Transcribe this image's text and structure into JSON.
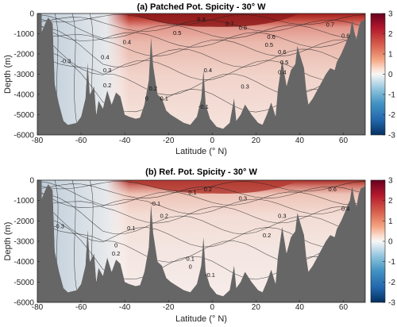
{
  "chart_data": [
    {
      "type": "heatmap",
      "title": "(a) Patched Pot. Spicity - 30° W",
      "xlabel": "Latitude (° N)",
      "ylabel": "Depth (m)",
      "xlim": [
        -80,
        70
      ],
      "ylim": [
        -6000,
        0
      ],
      "xticks": [
        "-80",
        "-60",
        "-40",
        "-20",
        "0",
        "20",
        "40",
        "60"
      ],
      "yticks": [
        "0",
        "-1000",
        "-2000",
        "-3000",
        "-4000",
        "-5000",
        "-6000"
      ],
      "colorbar": {
        "range": [
          -3,
          3
        ],
        "ticks": [
          "3",
          "2",
          "1",
          "0",
          "-1",
          "-2",
          "-3"
        ],
        "colormap": "blue-white-red"
      },
      "contour_labels": [
        {
          "text": "0.3",
          "lat": -5,
          "depth": -400
        },
        {
          "text": "0.7",
          "lat": 8,
          "depth": -600
        },
        {
          "text": "0.6",
          "lat": 14,
          "depth": -800
        },
        {
          "text": "0.5",
          "lat": -16,
          "depth": -1050
        },
        {
          "text": "0.4",
          "lat": -39,
          "depth": -1500
        },
        {
          "text": "0.5",
          "lat": 26,
          "depth": -1650
        },
        {
          "text": "0.6",
          "lat": 27,
          "depth": -1250
        },
        {
          "text": "0.7",
          "lat": 54,
          "depth": -650
        },
        {
          "text": "0.6",
          "lat": 61,
          "depth": -1200
        },
        {
          "text": "0.6",
          "lat": 32,
          "depth": -2000
        },
        {
          "text": "0.5",
          "lat": 33,
          "depth": -2500
        },
        {
          "text": "0.4",
          "lat": 32,
          "depth": -3000
        },
        {
          "text": "0.4",
          "lat": -2,
          "depth": -2900
        },
        {
          "text": "0.3",
          "lat": 15,
          "depth": -3700
        },
        {
          "text": "0.2",
          "lat": -27,
          "depth": -3800
        },
        {
          "text": "0.1",
          "lat": -22,
          "depth": -4300
        },
        {
          "text": "0",
          "lat": -30,
          "depth": -4300
        },
        {
          "text": "-0.1",
          "lat": -4,
          "depth": -4700
        },
        {
          "text": "-0.3",
          "lat": -67,
          "depth": -2450
        },
        {
          "text": "0.2",
          "lat": -48,
          "depth": -3650
        },
        {
          "text": "0.3",
          "lat": -48,
          "depth": -2900
        },
        {
          "text": "0.4",
          "lat": -49,
          "depth": -2250
        }
      ]
    },
    {
      "type": "heatmap",
      "title": "(b) Ref. Pot. Spicity - 30° W",
      "xlabel": "Latitude (° N)",
      "ylabel": "Depth (m)",
      "xlim": [
        -80,
        70
      ],
      "ylim": [
        -6000,
        0
      ],
      "xticks": [
        "-80",
        "-60",
        "-40",
        "-20",
        "0",
        "20",
        "40",
        "60"
      ],
      "yticks": [
        "0",
        "-1000",
        "-2000",
        "-3000",
        "-4000",
        "-5000",
        "-6000"
      ],
      "colorbar": {
        "range": [
          -3,
          3
        ],
        "ticks": [
          "3",
          "2",
          "1",
          "0",
          "-1",
          "-2",
          "-3"
        ],
        "colormap": "blue-white-red"
      },
      "contour_labels": [
        {
          "text": "0.2",
          "lat": -2,
          "depth": -550
        },
        {
          "text": "0.1",
          "lat": -9,
          "depth": -700
        },
        {
          "text": "0.3",
          "lat": 14,
          "depth": -1000
        },
        {
          "text": "-0.1",
          "lat": -26,
          "depth": -1250
        },
        {
          "text": "0.2",
          "lat": -22,
          "depth": -1850
        },
        {
          "text": "0.1",
          "lat": -37,
          "depth": -2450
        },
        {
          "text": "0.3",
          "lat": 32,
          "depth": -1850
        },
        {
          "text": "0.2",
          "lat": 25,
          "depth": -2800
        },
        {
          "text": "0.6",
          "lat": 55,
          "depth": -550
        },
        {
          "text": "0.4",
          "lat": 61,
          "depth": -1500
        },
        {
          "text": "-0.3",
          "lat": -70,
          "depth": -2350
        },
        {
          "text": "0",
          "lat": -44,
          "depth": -3300
        },
        {
          "text": "0.1",
          "lat": -10,
          "depth": -3950
        },
        {
          "text": "0",
          "lat": -10,
          "depth": -4350
        },
        {
          "text": "-0.1",
          "lat": -1,
          "depth": -4750
        },
        {
          "text": "0.2",
          "lat": -44,
          "depth": -3700
        }
      ]
    }
  ]
}
